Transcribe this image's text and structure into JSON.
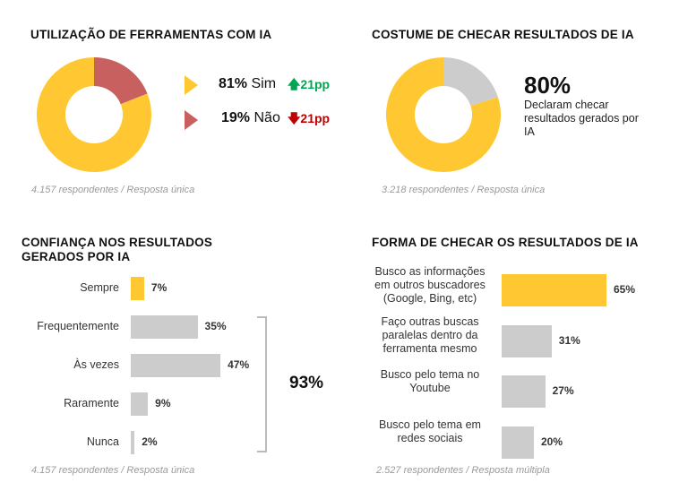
{
  "colors": {
    "yellow": "#FFC832",
    "red": "#C86060",
    "gray": "#CCCCCC",
    "green": "#00A651",
    "darkred": "#C00000"
  },
  "chart_data": [
    {
      "type": "pie",
      "title": "UTILIZAÇÃO DE FERRAMENTAS COM IA",
      "donut": true,
      "slices": [
        {
          "label": "Sim",
          "value": 81,
          "display": "81%",
          "change": "21pp",
          "direction": "up",
          "color": "#FFC832"
        },
        {
          "label": "Não",
          "value": 19,
          "display": "19%",
          "change": "21pp",
          "direction": "down",
          "color": "#C86060"
        }
      ],
      "note": "4.157 respondentes / Resposta única"
    },
    {
      "type": "pie",
      "title": "COSTUME DE CHECAR RESULTADOS DE IA",
      "donut": true,
      "slices": [
        {
          "value": 80,
          "color": "#FFC832"
        },
        {
          "value": 20,
          "color": "#CCCCCC"
        }
      ],
      "headline": "80%",
      "caption": "Declaram checar resultados gerados por IA",
      "note": "3.218 respondentes / Resposta única"
    },
    {
      "type": "bar",
      "orientation": "horizontal",
      "title": "CONFIANÇA NOS RESULTADOS GERADOS POR IA",
      "categories": [
        "Sempre",
        "Frequentemente",
        "Às vezes",
        "Raramente",
        "Nunca"
      ],
      "values": [
        7,
        35,
        47,
        9,
        2
      ],
      "labels": [
        "7%",
        "35%",
        "47%",
        "9%",
        "2%"
      ],
      "highlight": [
        true,
        false,
        false,
        false,
        false
      ],
      "bracket_total": "93%",
      "note": "4.157 respondentes / Resposta única"
    },
    {
      "type": "bar",
      "orientation": "horizontal",
      "title": "FORMA DE CHECAR OS RESULTADOS DE IA",
      "categories": [
        "Busco as informações em outros buscadores (Google, Bing, etc)",
        "Faço outras buscas paralelas dentro da ferramenta mesmo",
        "Busco pelo tema no Youtube",
        "Busco pelo tema em redes sociais"
      ],
      "values": [
        65,
        31,
        27,
        20
      ],
      "labels": [
        "65%",
        "31%",
        "27%",
        "20%"
      ],
      "highlight": [
        true,
        false,
        false,
        false
      ],
      "note": "2.527 respondentes / Resposta múltipla"
    }
  ]
}
